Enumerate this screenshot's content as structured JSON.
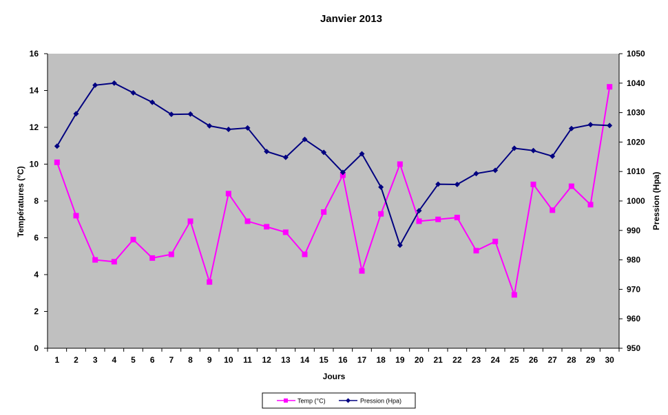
{
  "chart_data": {
    "type": "line",
    "title": "Janvier 2013",
    "xlabel": "Jours",
    "ylabel_left": "Températures (°C)",
    "ylabel_right": "Pression (Hpa)",
    "x": [
      1,
      2,
      3,
      4,
      5,
      6,
      7,
      8,
      9,
      10,
      11,
      12,
      13,
      14,
      15,
      16,
      17,
      18,
      19,
      20,
      21,
      22,
      23,
      24,
      25,
      26,
      27,
      28,
      29,
      30
    ],
    "ylim_left": [
      0,
      16
    ],
    "yticks_left": [
      0,
      2,
      4,
      6,
      8,
      10,
      12,
      14,
      16
    ],
    "ylim_right": [
      950,
      1050
    ],
    "yticks_right": [
      950,
      960,
      970,
      980,
      990,
      1000,
      1010,
      1020,
      1030,
      1040,
      1050
    ],
    "grid": false,
    "legend_position": "bottom-center",
    "plot_background": "#c0c0c0",
    "series": [
      {
        "name": "Temp (°C)",
        "axis": "left",
        "color": "#ff00ff",
        "marker": "square",
        "values": [
          10.1,
          7.2,
          4.8,
          4.7,
          5.9,
          4.9,
          5.1,
          6.9,
          3.6,
          8.4,
          6.9,
          6.6,
          6.3,
          5.1,
          7.4,
          9.4,
          4.2,
          7.3,
          10.0,
          6.9,
          7.0,
          7.1,
          5.3,
          5.8,
          2.9,
          8.9,
          7.5,
          8.8,
          7.8,
          14.2
        ]
      },
      {
        "name": "Pression (Hpa)",
        "axis": "right",
        "color": "#000080",
        "marker": "diamond",
        "values": [
          1018.6,
          1029.6,
          1039.3,
          1040.0,
          1036.7,
          1033.5,
          1029.4,
          1029.5,
          1025.5,
          1024.3,
          1024.8,
          1016.8,
          1014.8,
          1020.9,
          1016.5,
          1009.7,
          1016.0,
          1004.7,
          985.0,
          996.7,
          1005.7,
          1005.6,
          1009.3,
          1010.4,
          1017.9,
          1017.1,
          1015.2,
          1024.6,
          1025.9,
          1025.6
        ]
      }
    ]
  }
}
